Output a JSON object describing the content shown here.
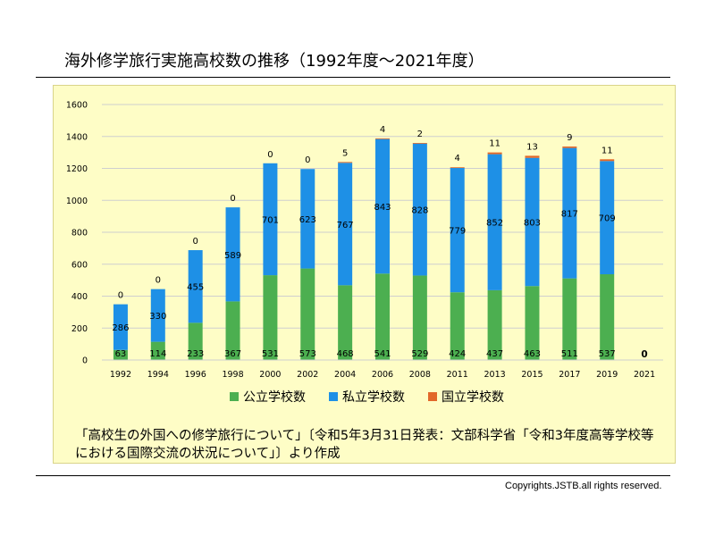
{
  "title": "海外修学旅行実施高校数の推移（1992年度～2021年度）",
  "source": "「高校生の外国への修学旅行について」〔令和5年3月31日発表：文部科学省「令和3年度高等学校等における国際交流の状況について」〕より作成",
  "copyright": "Copyrights.JSTB.all rights reserved.",
  "chart_data": {
    "type": "bar",
    "stacked": true,
    "categories": [
      "1992",
      "1994",
      "1996",
      "1998",
      "2000",
      "2002",
      "2004",
      "2006",
      "2008",
      "2011",
      "2013",
      "2015",
      "2017",
      "2019",
      "2021"
    ],
    "series": [
      {
        "name": "公立学校数",
        "color": "#4caf50",
        "values": [
          63,
          114,
          233,
          367,
          531,
          573,
          468,
          541,
          529,
          424,
          437,
          463,
          511,
          537,
          0
        ]
      },
      {
        "name": "私立学校数",
        "color": "#1e90e6",
        "values": [
          286,
          330,
          455,
          589,
          701,
          623,
          767,
          843,
          828,
          779,
          852,
          803,
          817,
          709,
          0
        ]
      },
      {
        "name": "国立学校数",
        "color": "#e2682a",
        "values": [
          0,
          0,
          0,
          0,
          0,
          0,
          5,
          4,
          2,
          4,
          11,
          13,
          9,
          11,
          0
        ]
      }
    ],
    "ylim": [
      0,
      1600
    ],
    "yticks": [
      0,
      200,
      400,
      600,
      800,
      1000,
      1200,
      1400,
      1600
    ],
    "grid": true,
    "legend": "bottom"
  }
}
